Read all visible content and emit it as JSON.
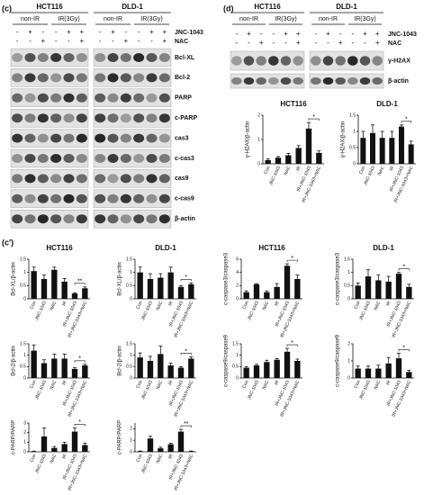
{
  "blots": {
    "c": {
      "label": "(c)",
      "cell_lines": [
        {
          "name": "HCT116",
          "groups": [
            "non-IR",
            "IR(3Gy)"
          ],
          "jnc": [
            "-",
            "+",
            "-",
            "-",
            "+",
            "+"
          ],
          "nac": [
            "-",
            "-",
            "+",
            "-",
            "-",
            "+"
          ]
        },
        {
          "name": "DLD-1",
          "groups": [
            "non-IR",
            "IR(3Gy)"
          ],
          "jnc": [
            "-",
            "+",
            "-",
            "-",
            "+",
            "+"
          ],
          "nac": [
            "-",
            "-",
            "+",
            "-",
            "-",
            "+"
          ]
        }
      ],
      "treatments": [
        "JNC-1043",
        "NAC"
      ],
      "proteins": [
        "Bcl-XL",
        "Bcl-2",
        "PARP",
        "c-PARP",
        "cas3",
        "c-cas3",
        "cas9",
        "c-cas9",
        "β-actin"
      ]
    },
    "d": {
      "label": "(d)",
      "cell_lines": [
        {
          "name": "HCT116",
          "groups": [
            "non-IR",
            "IR(3Gy)"
          ],
          "jnc": [
            "-",
            "+",
            "-",
            "-",
            "+",
            "+"
          ],
          "nac": [
            "-",
            "-",
            "+",
            "-",
            "-",
            "+"
          ]
        },
        {
          "name": "DLD-1",
          "groups": [
            "non-IR",
            "IR(3Gy)"
          ],
          "jnc": [
            "-",
            "+",
            "-",
            "-",
            "+",
            "+"
          ],
          "nac": [
            "-",
            "-",
            "+",
            "-",
            "-",
            "+"
          ]
        }
      ],
      "treatments": [
        "JNC-1043",
        "NAC"
      ],
      "proteins": [
        "γ-H2AX",
        "β-actin"
      ]
    },
    "c_prime_label": "(c′)"
  },
  "chart_data": [
    {
      "type": "bar",
      "title": "HCT116",
      "ylabel": "γ-H2AX/β-actin",
      "categories": [
        "Con",
        "JNC-1043",
        "NAC",
        "IR",
        "IR+JNC-1043",
        "IR+JNC-1043+NAC"
      ],
      "values": [
        0.15,
        0.25,
        0.35,
        0.65,
        1.45,
        0.45
      ],
      "errors": [
        0.05,
        0.05,
        0.08,
        0.1,
        0.25,
        0.08
      ],
      "color": "#111111",
      "ylim": [
        0,
        2
      ],
      "yticks": [
        0,
        1,
        2
      ],
      "annotation": "*"
    },
    {
      "type": "bar",
      "title": "DLD-1",
      "ylabel": "γ-H2AX/β-actin",
      "categories": [
        "Con",
        "JNC-1043",
        "NAC",
        "IR",
        "IR+JNC-1043",
        "IR+JNC-1043+NAC"
      ],
      "values": [
        0.8,
        0.95,
        0.8,
        0.8,
        1.15,
        0.6
      ],
      "errors": [
        0.2,
        0.25,
        0.2,
        0.2,
        0.05,
        0.1
      ],
      "color": "#111111",
      "ylim": [
        0,
        1.5
      ],
      "yticks": [
        0,
        0.5,
        1,
        1.5
      ],
      "annotation": "*"
    },
    {
      "type": "bar",
      "title": "HCT116",
      "ylabel": "Bcl-XL/β-actin",
      "categories": [
        "Con",
        "JNC-1043",
        "NAC",
        "IR",
        "IR+JNC-1043",
        "IR+JNC-1043+NAC"
      ],
      "values": [
        1.05,
        0.75,
        1.1,
        0.65,
        0.2,
        0.4
      ],
      "errors": [
        0.15,
        0.15,
        0.1,
        0.12,
        0.03,
        0.05
      ],
      "color": "#111111",
      "ylim": [
        0,
        1.5
      ],
      "yticks": [
        0,
        0.5,
        1,
        1.5
      ],
      "annotation": "**"
    },
    {
      "type": "bar",
      "title": "DLD-1",
      "ylabel": "Bcl-XL/β-actin",
      "categories": [
        "Con",
        "JNC-1043",
        "NAC",
        "IR",
        "IR+JNC-1043",
        "IR+JNC-1043+NAC"
      ],
      "values": [
        1.0,
        0.75,
        0.8,
        1.0,
        0.45,
        0.55
      ],
      "errors": [
        0.2,
        0.2,
        0.15,
        0.2,
        0.05,
        0.05
      ],
      "color": "#111111",
      "ylim": [
        0,
        1.5
      ],
      "yticks": [
        0,
        0.5,
        1,
        1.5
      ],
      "annotation": "*"
    },
    {
      "type": "bar",
      "title": "HCT116",
      "ylabel": "c-caspase3/caspase3",
      "categories": [
        "Con",
        "JNC-1043",
        "NAC",
        "IR",
        "IR+JNC-1043",
        "IR+JNC-1043+NAC"
      ],
      "values": [
        1.0,
        2.2,
        1.0,
        1.8,
        5.0,
        3.0
      ],
      "errors": [
        0.2,
        0.1,
        0.2,
        0.5,
        0.3,
        0.6
      ],
      "color": "#111111",
      "ylim": [
        0,
        6
      ],
      "yticks": [
        0,
        2,
        4,
        6
      ],
      "annotation": "*"
    },
    {
      "type": "bar",
      "title": "DLD-1",
      "ylabel": "c-caspase3/caspase3",
      "categories": [
        "Con",
        "JNC-1043",
        "NAC",
        "IR",
        "IR+JNC-1043",
        "IR+JNC-1043+NAC"
      ],
      "values": [
        0.5,
        0.85,
        0.7,
        0.65,
        0.95,
        0.45
      ],
      "errors": [
        0.1,
        0.25,
        0.2,
        0.2,
        0.05,
        0.1
      ],
      "color": "#111111",
      "ylim": [
        0,
        1.5
      ],
      "yticks": [
        0,
        0.5,
        1,
        1.5
      ],
      "annotation": "*"
    },
    {
      "type": "bar",
      "ylabel": "Bcl-2/β-actin",
      "categories": [
        "Con",
        "JNC-1043",
        "NAC",
        "IR",
        "IR+JNC-1043",
        "IR+JNC-1043+NAC"
      ],
      "values": [
        1.2,
        0.65,
        0.85,
        0.85,
        0.4,
        0.55
      ],
      "errors": [
        0.25,
        0.15,
        0.2,
        0.2,
        0.05,
        0.05
      ],
      "color": "#111111",
      "ylim": [
        0,
        1.5
      ],
      "yticks": [
        0,
        0.5,
        1,
        1.5
      ],
      "annotation": "*"
    },
    {
      "type": "bar",
      "ylabel": "Bcl-2/β-actin",
      "categories": [
        "Con",
        "JNC-1043",
        "NAC",
        "IR",
        "IR+JNC-1043",
        "IR+JNC-1043+NAC"
      ],
      "values": [
        0.9,
        0.75,
        1.05,
        0.55,
        0.45,
        0.85
      ],
      "errors": [
        0.2,
        0.2,
        0.35,
        0.1,
        0.05,
        0.08
      ],
      "color": "#111111",
      "ylim": [
        0,
        1.5
      ],
      "yticks": [
        0,
        0.5,
        1,
        1.5
      ],
      "annotation": "*"
    },
    {
      "type": "bar",
      "ylabel": "c-caspase9/caspase9",
      "categories": [
        "Con",
        "JNC-1043",
        "NAC",
        "IR",
        "IR+JNC-1043",
        "IR+JNC-1043+NAC"
      ],
      "values": [
        0.45,
        0.55,
        0.7,
        0.8,
        1.15,
        0.75
      ],
      "errors": [
        0.05,
        0.05,
        0.08,
        0.05,
        0.15,
        0.08
      ],
      "color": "#111111",
      "ylim": [
        0,
        1.5
      ],
      "yticks": [
        0,
        0.5,
        1,
        1.5
      ],
      "annotation": "*"
    },
    {
      "type": "bar",
      "ylabel": "c-caspase9/caspase9",
      "categories": [
        "Con",
        "JNC-1043",
        "NAC",
        "IR",
        "IR+JNC-1043",
        "IR+JNC-1043+NAC"
      ],
      "values": [
        0.55,
        0.55,
        0.55,
        0.85,
        1.15,
        0.35
      ],
      "errors": [
        0.15,
        0.15,
        0.2,
        0.35,
        0.3,
        0.1
      ],
      "color": "#111111",
      "ylim": [
        0,
        2
      ],
      "yticks": [
        0,
        1,
        2
      ],
      "annotation": "*"
    },
    {
      "type": "bar",
      "ylabel": "c-PARP/PARP",
      "categories": [
        "Con",
        "JNC-1043",
        "NAC",
        "IR",
        "IR+JNC-1043",
        "IR+JNC-1043+NAC"
      ],
      "values": [
        0.05,
        1.6,
        0.4,
        0.8,
        2.1,
        0.7
      ],
      "errors": [
        0.02,
        0.9,
        0.15,
        0.2,
        0.4,
        0.2
      ],
      "color": "#111111",
      "ylim": [
        0,
        3
      ],
      "yticks": [
        0,
        1,
        2,
        3
      ],
      "annotation": "*"
    },
    {
      "type": "bar",
      "ylabel": "c-PARP/PARP",
      "categories": [
        "Con",
        "JNC-1043",
        "NAC",
        "IR",
        "IR+JNC-1043",
        "IR+JNC-1043+NAC"
      ],
      "values": [
        0.05,
        1.15,
        0.3,
        0.65,
        1.75,
        0.05
      ],
      "errors": [
        0.02,
        0.2,
        0.1,
        0.1,
        0.2,
        0.02
      ],
      "color": "#111111",
      "ylim": [
        0,
        2.5
      ],
      "yticks": [
        0,
        1,
        2
      ],
      "annotation": "**"
    }
  ]
}
